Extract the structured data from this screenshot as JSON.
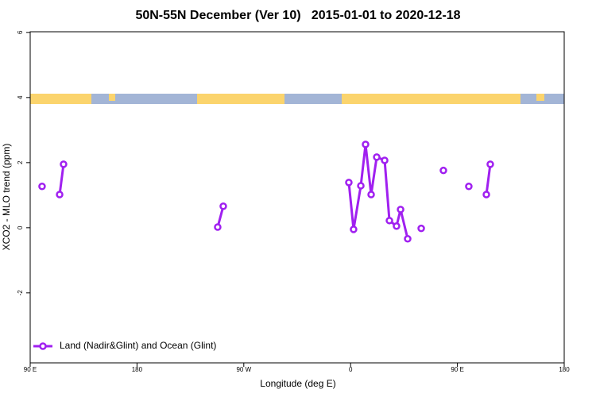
{
  "chart_data": {
    "type": "line",
    "title": "50N-55N December (Ver 10)   2015-01-01 to 2020-12-18",
    "xlabel": "Longitude (deg E)",
    "ylabel": "XCO2 - MLO trend (ppm)",
    "xlim": [
      90,
      540
    ],
    "ylim": [
      -4.15,
      6.02
    ],
    "xticks": [
      {
        "value": 90,
        "label": "90 E"
      },
      180,
      {
        "value": 270,
        "label": "90 W"
      },
      {
        "value": 360,
        "label": "0"
      },
      {
        "value": 450,
        "label": "90 E"
      },
      {
        "value": 540,
        "label": "180"
      }
    ],
    "yticks": [
      -2,
      0,
      2,
      4,
      6
    ],
    "legend": "bottom-left",
    "series": [
      {
        "name": "Land (Nadir&Glint) and Ocean (Glint)",
        "color": "#a020f0",
        "x": [
          100.0,
          null,
          114.8,
          118.1,
          null,
          248.0,
          252.7,
          null,
          358.5,
          362.5,
          368.6,
          372.6,
          377.3,
          382.0,
          388.7,
          392.7,
          398.7,
          402.1,
          408.1,
          null,
          419.5,
          null,
          438.2,
          null,
          459.6,
          null,
          474.4,
          477.7
        ],
        "values": [
          1.27,
          null,
          1.02,
          1.95,
          null,
          0.02,
          0.66,
          null,
          1.39,
          -0.05,
          1.29,
          2.56,
          1.02,
          2.17,
          2.07,
          0.22,
          0.05,
          0.56,
          -0.34,
          null,
          -0.02,
          null,
          1.76,
          null,
          1.27,
          null,
          1.02,
          1.95
        ]
      }
    ]
  }
}
